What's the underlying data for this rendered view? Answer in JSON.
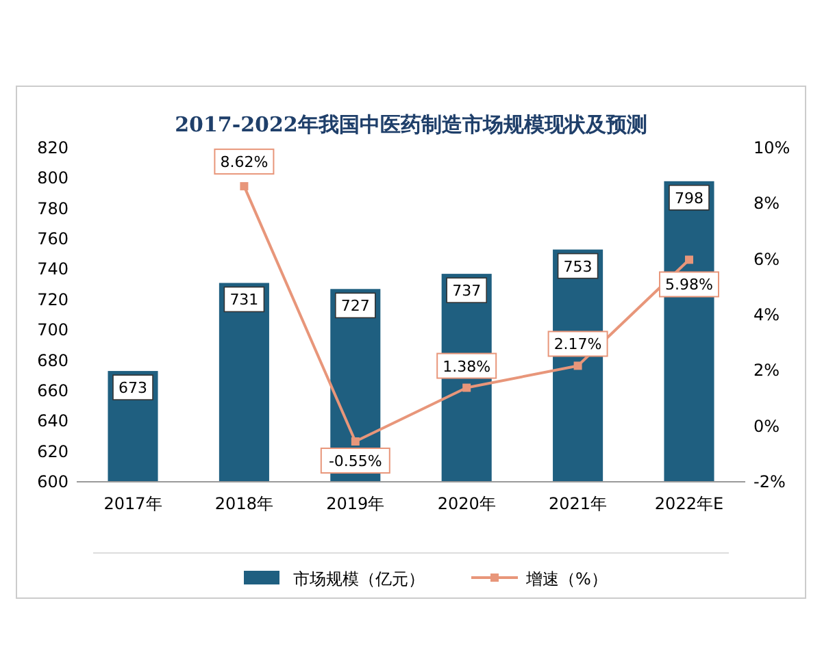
{
  "chart_data": {
    "type": "bar",
    "title": "2017-2022年我国中医药制造市场规模现状及预测",
    "categories": [
      "2017年",
      "2018年",
      "2019年",
      "2020年",
      "2021年",
      "2022年E"
    ],
    "series": [
      {
        "name": "市场规模（亿元）",
        "color": "#1f5f80",
        "values": [
          673,
          731,
          727,
          737,
          753,
          798
        ],
        "value_labels": [
          "673",
          "731",
          "727",
          "737",
          "753",
          "798"
        ]
      },
      {
        "name": "增速（%）",
        "type": "line",
        "axis": "y2",
        "color": "#e8967a",
        "values": [
          null,
          8.62,
          -0.55,
          1.38,
          2.17,
          5.98
        ],
        "value_labels": [
          null,
          "8.62%",
          "-0.55%",
          "1.38%",
          "2.17%",
          "5.98%"
        ]
      }
    ],
    "ylim": [
      600,
      820
    ],
    "yticks": [
      600,
      620,
      640,
      660,
      680,
      700,
      720,
      740,
      760,
      780,
      800,
      820
    ],
    "y2lim": [
      -2,
      10
    ],
    "y2ticks": [
      {
        "value": -2,
        "label": "-2%"
      },
      {
        "value": 0,
        "label": "0%"
      },
      {
        "value": 2,
        "label": "2%"
      },
      {
        "value": 4,
        "label": "4%"
      },
      {
        "value": 6,
        "label": "6%"
      },
      {
        "value": 8,
        "label": "8%"
      },
      {
        "value": 10,
        "label": "10%"
      }
    ],
    "marker": "square",
    "legend": "bottom",
    "grid": false
  }
}
